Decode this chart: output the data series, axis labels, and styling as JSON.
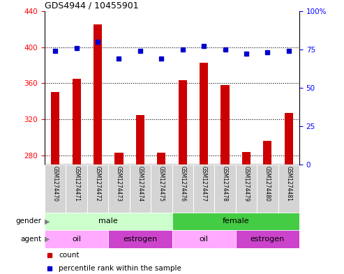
{
  "title": "GDS4944 / 10455901",
  "samples": [
    "GSM1274470",
    "GSM1274471",
    "GSM1274472",
    "GSM1274473",
    "GSM1274474",
    "GSM1274475",
    "GSM1274476",
    "GSM1274477",
    "GSM1274478",
    "GSM1274479",
    "GSM1274480",
    "GSM1274481"
  ],
  "counts": [
    350,
    365,
    425,
    283,
    325,
    283,
    363,
    383,
    358,
    284,
    296,
    327
  ],
  "percentiles": [
    74,
    76,
    80,
    69,
    74,
    69,
    75,
    77,
    75,
    72,
    73,
    74
  ],
  "ylim_left": [
    270,
    440
  ],
  "ylim_right": [
    0,
    100
  ],
  "yticks_left": [
    280,
    320,
    360,
    400,
    440
  ],
  "yticks_right": [
    0,
    25,
    50,
    75,
    100
  ],
  "bar_color": "#cc0000",
  "scatter_color": "#0000cc",
  "gender_groups": [
    {
      "label": "male",
      "span": [
        0,
        6
      ],
      "color": "#ccffcc"
    },
    {
      "label": "female",
      "span": [
        6,
        12
      ],
      "color": "#44cc44"
    }
  ],
  "agent_groups": [
    {
      "label": "oil",
      "span": [
        0,
        3
      ],
      "color": "#ffaaff"
    },
    {
      "label": "estrogen",
      "span": [
        3,
        6
      ],
      "color": "#cc44cc"
    },
    {
      "label": "oil",
      "span": [
        6,
        9
      ],
      "color": "#ffaaff"
    },
    {
      "label": "estrogen",
      "span": [
        9,
        12
      ],
      "color": "#cc44cc"
    }
  ],
  "label_count": "count",
  "label_percentile": "percentile rank within the sample",
  "grid_color": "#000000",
  "bar_width": 0.4
}
